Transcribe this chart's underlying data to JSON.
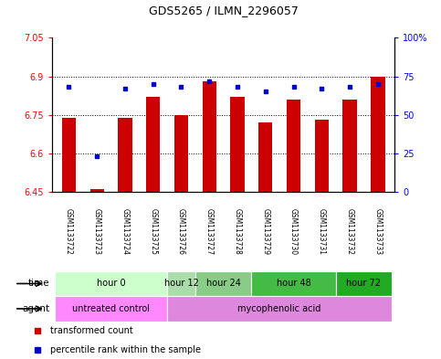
{
  "title": "GDS5265 / ILMN_2296057",
  "samples": [
    "GSM1133722",
    "GSM1133723",
    "GSM1133724",
    "GSM1133725",
    "GSM1133726",
    "GSM1133727",
    "GSM1133728",
    "GSM1133729",
    "GSM1133730",
    "GSM1133731",
    "GSM1133732",
    "GSM1133733"
  ],
  "bar_values": [
    6.74,
    6.46,
    6.74,
    6.82,
    6.75,
    6.88,
    6.82,
    6.72,
    6.81,
    6.73,
    6.81,
    6.9
  ],
  "dot_values": [
    68,
    23,
    67,
    70,
    68,
    72,
    68,
    65,
    68,
    67,
    68,
    70
  ],
  "bar_base": 6.45,
  "ylim_left": [
    6.45,
    7.05
  ],
  "ylim_right": [
    0,
    100
  ],
  "yticks_left": [
    6.45,
    6.6,
    6.75,
    6.9,
    7.05
  ],
  "ytick_labels_left": [
    "6.45",
    "6.6",
    "6.75",
    "6.9",
    "7.05"
  ],
  "yticks_right": [
    0,
    25,
    50,
    75,
    100
  ],
  "ytick_labels_right": [
    "0",
    "25",
    "50",
    "75",
    "100%"
  ],
  "hlines": [
    6.6,
    6.75,
    6.9
  ],
  "bar_color": "#cc0000",
  "dot_color": "#0000cc",
  "bar_width": 0.5,
  "time_groups": [
    {
      "label": "hour 0",
      "start": 0,
      "end": 3,
      "color": "#ccffcc"
    },
    {
      "label": "hour 12",
      "start": 4,
      "end": 4,
      "color": "#aaddaa"
    },
    {
      "label": "hour 24",
      "start": 5,
      "end": 6,
      "color": "#88cc88"
    },
    {
      "label": "hour 48",
      "start": 7,
      "end": 9,
      "color": "#44bb44"
    },
    {
      "label": "hour 72",
      "start": 10,
      "end": 11,
      "color": "#22aa22"
    }
  ],
  "agent_groups": [
    {
      "label": "untreated control",
      "start": 0,
      "end": 3,
      "color": "#ff88ff"
    },
    {
      "label": "mycophenolic acid",
      "start": 4,
      "end": 11,
      "color": "#dd88dd"
    }
  ],
  "legend_items": [
    {
      "label": "transformed count",
      "color": "#cc0000"
    },
    {
      "label": "percentile rank within the sample",
      "color": "#0000cc"
    }
  ],
  "xticklabel_bg": "#cccccc",
  "plot_bg": "#ffffff",
  "fig_bg": "#ffffff"
}
